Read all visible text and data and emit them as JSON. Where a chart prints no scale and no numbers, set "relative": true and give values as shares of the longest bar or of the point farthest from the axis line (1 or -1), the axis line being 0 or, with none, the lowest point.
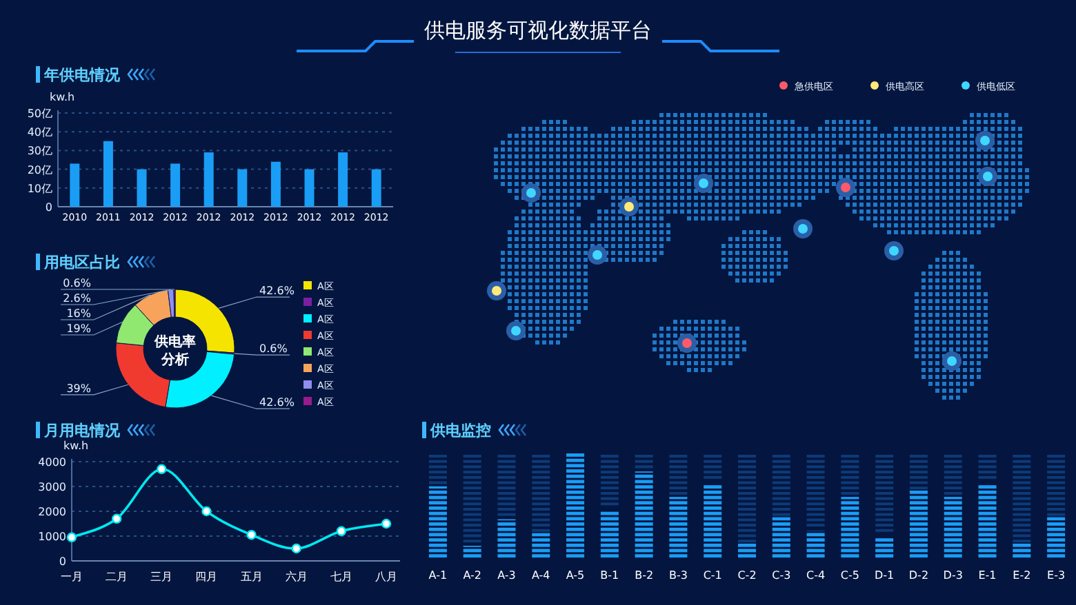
{
  "chart_data": [
    {
      "type": "bar",
      "title": "年供电情况",
      "ylabel": "kw.h",
      "categories": [
        "2010",
        "2011",
        "2012",
        "2012",
        "2012",
        "2012",
        "2012",
        "2012",
        "2012",
        "2012"
      ],
      "values": [
        23,
        35,
        20,
        23,
        29,
        20,
        24,
        20,
        29,
        20
      ],
      "color": "#1a9df5",
      "ylim": [
        0,
        50
      ],
      "yticks": [
        0,
        {
          "value": 10,
          "label": "10亿"
        },
        {
          "value": 20,
          "label": "20亿"
        },
        {
          "value": 30,
          "label": "30亿"
        },
        {
          "value": 40,
          "label": "40亿"
        },
        {
          "value": 50,
          "label": "50亿"
        }
      ],
      "grid": "y"
    },
    {
      "type": "donut",
      "title": "用电区占比",
      "annotations": [
        "供电率分析"
      ],
      "categories": [
        "A区",
        "A区",
        "A区",
        "A区",
        "A区",
        "A区",
        "A区",
        "A区"
      ],
      "values": [
        42.6,
        0.6,
        42.6,
        39,
        19,
        16,
        2.6,
        0.6
      ],
      "value_labels": [
        "42.6%",
        "0.6%",
        "42.6%",
        "39%",
        "19%",
        "16%",
        "2.6%",
        "0.6%"
      ],
      "colors": [
        "#f5e400",
        "#7b1fa2",
        "#00f0ff",
        "#f03a30",
        "#90e870",
        "#f7a35c",
        "#8f8fef",
        "#9c1a8c"
      ],
      "legend": "right"
    },
    {
      "type": "line",
      "title": "月用电情况",
      "ylabel": "kw.h",
      "categories": [
        "一月",
        "二月",
        "三月",
        "四月",
        "五月",
        "六月",
        "七月",
        "八月"
      ],
      "values": [
        950,
        1700,
        3700,
        2000,
        1050,
        500,
        1200,
        1500
      ],
      "color": "#00e8f0",
      "ylim": [
        0,
        4000
      ],
      "yticks": [
        0,
        1000,
        2000,
        3000,
        4000
      ],
      "grid": "y",
      "marker": "circle"
    },
    {
      "type": "bar",
      "title": "供电监控",
      "categories": [
        "A-1",
        "A-2",
        "A-3",
        "A-4",
        "A-5",
        "B-1",
        "B-2",
        "B-3",
        "C-1",
        "C-2",
        "C-3",
        "C-4",
        "C-5",
        "D-1",
        "D-2",
        "D-3",
        "E-1",
        "E-2",
        "E-3"
      ],
      "values": [
        0.69,
        0.13,
        0.38,
        0.25,
        1,
        0.46,
        0.83,
        0.59,
        0.71,
        0.15,
        0.4,
        0.27,
        0.59,
        0.21,
        0.65,
        0.59,
        0.71,
        0.15,
        0.4
      ],
      "color": "#1a9df5",
      "relative": true
    },
    {
      "type": "other",
      "title": "供电服务可视化数据平台",
      "annotations": [
        "急供电区",
        "供电高区",
        "供电低区"
      ]
    }
  ]
}
